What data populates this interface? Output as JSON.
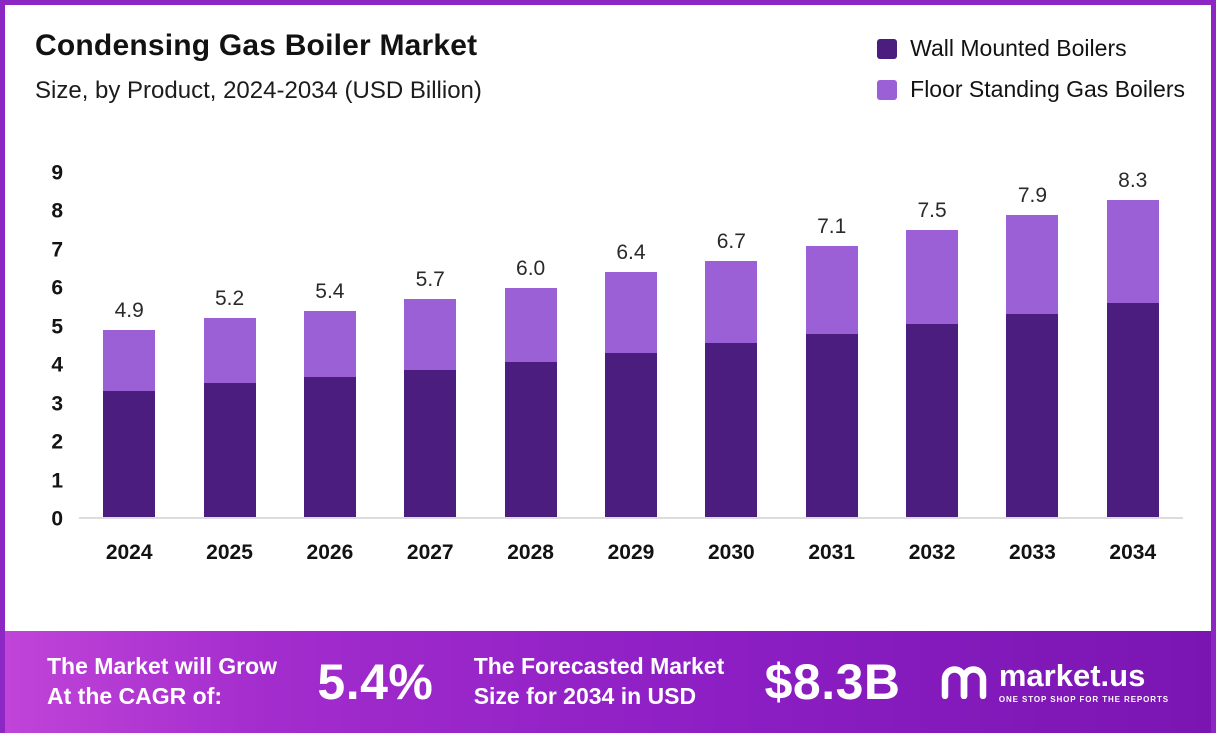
{
  "page": {
    "title": "Condensing Gas Boiler Market",
    "subtitle": "Size, by Product, 2024-2034 (USD Billion)"
  },
  "legend": [
    {
      "label": "Wall Mounted Boilers",
      "color": "#4a1d7f"
    },
    {
      "label": "Floor Standing Gas Boilers",
      "color": "#9b5fd6"
    }
  ],
  "chart_data": {
    "type": "bar",
    "stacked": true,
    "title": "Condensing Gas Boiler Market Size, by Product, 2024-2034 (USD Billion)",
    "categories": [
      "2024",
      "2025",
      "2026",
      "2027",
      "2028",
      "2029",
      "2030",
      "2031",
      "2032",
      "2033",
      "2034"
    ],
    "series": [
      {
        "name": "Wall Mounted Boilers",
        "color": "#4a1d7f",
        "values": [
          3.3,
          3.5,
          3.65,
          3.85,
          4.05,
          4.3,
          4.55,
          4.8,
          5.05,
          5.3,
          5.6
        ]
      },
      {
        "name": "Floor Standing Gas Boilers",
        "color": "#9b5fd6",
        "values": [
          1.6,
          1.7,
          1.75,
          1.85,
          1.95,
          2.1,
          2.15,
          2.3,
          2.45,
          2.6,
          2.7
        ]
      }
    ],
    "totals": [
      4.9,
      5.2,
      5.4,
      5.7,
      6.0,
      6.4,
      6.7,
      7.1,
      7.5,
      7.9,
      8.3
    ],
    "total_labels": [
      "4.9",
      "5.2",
      "5.4",
      "5.7",
      "6.0",
      "6.4",
      "6.7",
      "7.1",
      "7.5",
      "7.9",
      "8.3"
    ],
    "y_ticks": [
      0,
      1,
      2,
      3,
      4,
      5,
      6,
      7,
      8,
      9
    ],
    "ylim": [
      0,
      9
    ],
    "grid": false,
    "legend_position": "top-right",
    "xlabel": "",
    "ylabel": ""
  },
  "banner": {
    "cagr_label_line1": "The Market will Grow",
    "cagr_label_line2": "At the CAGR of:",
    "cagr_value": "5.4%",
    "forecast_label_line1": "The Forecasted Market",
    "forecast_label_line2": "Size for 2034 in USD",
    "forecast_value": "$8.3B",
    "brand": "market.us",
    "brand_tagline": "ONE STOP SHOP FOR THE REPORTS"
  },
  "colors": {
    "border": "#8d27c3",
    "banner_gradient_from": "#c044d8",
    "banner_gradient_to": "#7a15b2",
    "wall_mounted": "#4a1d7f",
    "floor_standing": "#9b5fd6"
  }
}
